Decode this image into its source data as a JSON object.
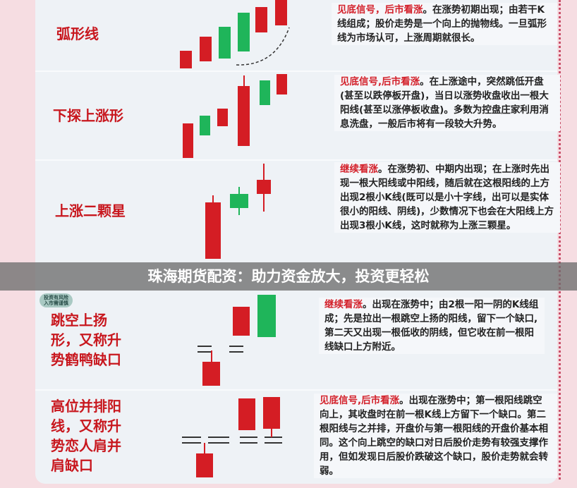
{
  "banner": "珠海期货配资：助力资金放大，投资更轻松",
  "badge": "投资有风险\n入市需谨慎",
  "colors": {
    "bullish": "#d41d24",
    "bearish": "#1fb55a",
    "highlight": "#d3202a"
  },
  "patterns": [
    {
      "title": "弧形线",
      "signal": "见底信号，后市看涨",
      "text": "。在涨势初期出现；由若干K线组成；股价走势是一个向上的抛物线。一旦弧形线为市场认可，上涨周期就很长。"
    },
    {
      "title": "下探上涨形",
      "signal": "见底信号,后市看涨",
      "text": "。在上涨途中，突然跳低开盘(甚至以跌停板开盘)，当日以涨势收盘收出一根大阳线(甚至以涨停板收盘)。多数为控盘庄家利用消息洗盘，一般后市将有一段较大升势。"
    },
    {
      "title": "上涨二颗星",
      "signal": "继续看涨",
      "text": "。在涨势初、中期内出现；在上涨时先出现一根大阳线或中阳线，随后就在这根阳线的上方出现2根小K线(既可以是小十字线，出可以是实体很小的阳线、阴线)，少数情况下也会在大阳线上方出现3根小K线，这时就称为上涨三颗星。"
    },
    {
      "title": "跳空上扬形，又称升势鹤鸭缺口",
      "signal": "继续看涨",
      "text": "。出现在涨势中；由2根一阳一阴的K线组成；先是拉出一根跳空上扬的阳线，留下一个缺口,第二天又出现一根低收的阴线，但它收在前一根阳线缺口上方附近。"
    },
    {
      "title": "高位并排阳线，又称升势恋人肩并肩缺口",
      "signal": "见底信号,后市看涨",
      "text": "。出现在涨势中；第一根阳线跳空向上，其收盘时在前一根K线上方留下一个缺口。第二根阳线与之并排，开盘价与第一根阳线的开盘价基本相同。这个向上跳空的缺口对日后股价走势有较强支撑作用，但如发现日后股价跌破这个缺口，股价走势就会转弱。"
    }
  ]
}
